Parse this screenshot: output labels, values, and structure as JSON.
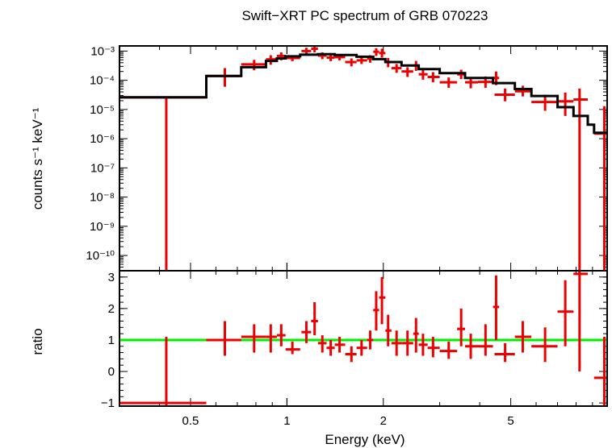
{
  "chart_data": {
    "type": "scatter",
    "title": "Swift−XRT PC spectrum of GRB 070223",
    "xlabel": "Energy (keV)",
    "x_scale": "log",
    "xlim": [
      0.3,
      10
    ],
    "x_ticks": [
      {
        "value": 0.5,
        "label": "0.5"
      },
      {
        "value": 1,
        "label": "1"
      },
      {
        "value": 2,
        "label": "2"
      },
      {
        "value": 5,
        "label": "5"
      }
    ],
    "panels": [
      {
        "name": "spectrum",
        "ylabel": "counts s⁻¹ keV⁻¹",
        "y_scale": "log",
        "ylim": [
          3e-11,
          0.0015
        ],
        "y_ticks": [
          {
            "value": 0.001,
            "label": "10⁻³"
          },
          {
            "value": 0.0001,
            "label": "10⁻⁴"
          },
          {
            "value": 1e-05,
            "label": "10⁻⁵"
          },
          {
            "value": 1e-06,
            "label": "10⁻⁶"
          },
          {
            "value": 1e-07,
            "label": "10⁻⁷"
          },
          {
            "value": 1e-08,
            "label": "10⁻⁸"
          },
          {
            "value": 1e-09,
            "label": "10⁻⁹"
          },
          {
            "value": 1e-10,
            "label": "10⁻¹⁰"
          }
        ],
        "data_color": "#ee0000",
        "model_color": "#000000",
        "points": [
          {
            "x": 0.42,
            "xlo": 0.3,
            "xhi": 0.56,
            "y": 2.6e-05,
            "ylo": 1e-11,
            "yhi": 2.6e-05
          },
          {
            "x": 0.64,
            "xlo": 0.56,
            "xhi": 0.72,
            "y": 0.00014,
            "ylo": 6e-05,
            "yhi": 0.00026
          },
          {
            "x": 0.79,
            "xlo": 0.72,
            "xhi": 0.86,
            "y": 0.00035,
            "ylo": 0.00022,
            "yhi": 0.0005
          },
          {
            "x": 0.89,
            "xlo": 0.86,
            "xhi": 0.93,
            "y": 0.00052,
            "ylo": 0.00034,
            "yhi": 0.00072
          },
          {
            "x": 0.96,
            "xlo": 0.93,
            "xhi": 0.99,
            "y": 0.00068,
            "ylo": 0.00048,
            "yhi": 0.0009
          },
          {
            "x": 1.04,
            "xlo": 0.99,
            "xhi": 1.1,
            "y": 0.00058,
            "ylo": 0.00045,
            "yhi": 0.00072
          },
          {
            "x": 1.15,
            "xlo": 1.11,
            "xhi": 1.19,
            "y": 0.001,
            "ylo": 0.00075,
            "yhi": 0.0013
          },
          {
            "x": 1.22,
            "xlo": 1.19,
            "xhi": 1.25,
            "y": 0.0012,
            "ylo": 0.0009,
            "yhi": 0.0015
          },
          {
            "x": 1.29,
            "xlo": 1.25,
            "xhi": 1.33,
            "y": 0.0007,
            "ylo": 0.00053,
            "yhi": 0.0009
          },
          {
            "x": 1.37,
            "xlo": 1.33,
            "xhi": 1.41,
            "y": 0.0006,
            "ylo": 0.00045,
            "yhi": 0.00078
          },
          {
            "x": 1.46,
            "xlo": 1.41,
            "xhi": 1.52,
            "y": 0.00062,
            "ylo": 0.00048,
            "yhi": 0.00078
          },
          {
            "x": 1.59,
            "xlo": 1.52,
            "xhi": 1.65,
            "y": 0.00042,
            "ylo": 0.0003,
            "yhi": 0.00056
          },
          {
            "x": 1.71,
            "xlo": 1.65,
            "xhi": 1.78,
            "y": 0.00048,
            "ylo": 0.00036,
            "yhi": 0.00062
          },
          {
            "x": 1.82,
            "xlo": 1.78,
            "xhi": 1.86,
            "y": 0.00055,
            "ylo": 0.0004,
            "yhi": 0.00072
          },
          {
            "x": 1.9,
            "xlo": 1.86,
            "xhi": 1.94,
            "y": 0.00095,
            "ylo": 0.00068,
            "yhi": 0.00125
          },
          {
            "x": 1.98,
            "xlo": 1.94,
            "xhi": 2.03,
            "y": 0.00085,
            "ylo": 0.0006,
            "yhi": 0.0012
          },
          {
            "x": 2.07,
            "xlo": 2.03,
            "xhi": 2.12,
            "y": 0.00042,
            "ylo": 0.00028,
            "yhi": 0.00058
          },
          {
            "x": 2.2,
            "xlo": 2.12,
            "xhi": 2.28,
            "y": 0.00026,
            "ylo": 0.00018,
            "yhi": 0.00036
          },
          {
            "x": 2.38,
            "xlo": 2.28,
            "xhi": 2.48,
            "y": 0.0002,
            "ylo": 0.00013,
            "yhi": 0.00028
          },
          {
            "x": 2.53,
            "xlo": 2.48,
            "xhi": 2.58,
            "y": 0.00032,
            "ylo": 0.00021,
            "yhi": 0.00046
          },
          {
            "x": 2.66,
            "xlo": 2.58,
            "xhi": 2.75,
            "y": 0.00016,
            "ylo": 0.000105,
            "yhi": 0.00023
          },
          {
            "x": 2.86,
            "xlo": 2.75,
            "xhi": 3.0,
            "y": 0.00013,
            "ylo": 8.5e-05,
            "yhi": 0.00019
          },
          {
            "x": 3.2,
            "xlo": 3.0,
            "xhi": 3.4,
            "y": 8.5e-05,
            "ylo": 5.5e-05,
            "yhi": 0.000125
          },
          {
            "x": 3.5,
            "xlo": 3.4,
            "xhi": 3.6,
            "y": 0.00016,
            "ylo": 0.00011,
            "yhi": 0.00023
          },
          {
            "x": 3.75,
            "xlo": 3.6,
            "xhi": 3.95,
            "y": 8.5e-05,
            "ylo": 5.3e-05,
            "yhi": 0.00013
          },
          {
            "x": 4.17,
            "xlo": 3.95,
            "xhi": 4.4,
            "y": 8.8e-05,
            "ylo": 5.5e-05,
            "yhi": 0.000135
          },
          {
            "x": 4.5,
            "xlo": 4.4,
            "xhi": 4.6,
            "y": 0.00012,
            "ylo": 6.8e-05,
            "yhi": 0.0002
          },
          {
            "x": 4.8,
            "xlo": 4.45,
            "xhi": 5.15,
            "y": 3.2e-05,
            "ylo": 1.9e-05,
            "yhi": 5.2e-05
          },
          {
            "x": 5.45,
            "xlo": 5.15,
            "xhi": 5.8,
            "y": 4.2e-05,
            "ylo": 2.8e-05,
            "yhi": 6.5e-05
          },
          {
            "x": 6.4,
            "xlo": 5.8,
            "xhi": 7.0,
            "y": 1.8e-05,
            "ylo": 9e-06,
            "yhi": 3.2e-05
          },
          {
            "x": 7.4,
            "xlo": 7.0,
            "xhi": 7.85,
            "y": 1.9e-05,
            "ylo": 6e-06,
            "yhi": 3.8e-05
          },
          {
            "x": 8.2,
            "xlo": 7.85,
            "xhi": 8.7,
            "y": 2.2e-05,
            "ylo": 1e-11,
            "yhi": 5.2e-05
          },
          {
            "x": 9.8,
            "xlo": 9.1,
            "xhi": 10.0,
            "y": 1.5e-06,
            "ylo": 1e-11,
            "yhi": 1.3e-05
          }
        ],
        "model_steps": [
          {
            "x0": 0.3,
            "x1": 0.56,
            "y": 2.6e-05
          },
          {
            "x0": 0.56,
            "x1": 0.72,
            "y": 0.00014
          },
          {
            "x0": 0.72,
            "x1": 0.86,
            "y": 0.00028
          },
          {
            "x0": 0.86,
            "x1": 0.93,
            "y": 0.00046
          },
          {
            "x0": 0.93,
            "x1": 0.99,
            "y": 0.00056
          },
          {
            "x0": 0.99,
            "x1": 1.1,
            "y": 0.00066
          },
          {
            "x0": 1.1,
            "x1": 1.25,
            "y": 0.00075
          },
          {
            "x0": 1.25,
            "x1": 1.41,
            "y": 0.00078
          },
          {
            "x0": 1.41,
            "x1": 1.65,
            "y": 0.00073
          },
          {
            "x0": 1.65,
            "x1": 1.86,
            "y": 0.00064
          },
          {
            "x0": 1.86,
            "x1": 2.03,
            "y": 0.00053
          },
          {
            "x0": 2.03,
            "x1": 2.28,
            "y": 0.00042
          },
          {
            "x0": 2.28,
            "x1": 2.58,
            "y": 0.00032
          },
          {
            "x0": 2.58,
            "x1": 3.0,
            "y": 0.00024
          },
          {
            "x0": 3.0,
            "x1": 3.6,
            "y": 0.000175
          },
          {
            "x0": 3.6,
            "x1": 4.4,
            "y": 0.00012
          },
          {
            "x0": 4.4,
            "x1": 5.15,
            "y": 8e-05
          },
          {
            "x0": 5.15,
            "x1": 5.8,
            "y": 5e-05
          },
          {
            "x0": 5.8,
            "x1": 7.0,
            "y": 2.9e-05
          },
          {
            "x0": 7.0,
            "x1": 7.85,
            "y": 1.2e-05
          },
          {
            "x0": 7.85,
            "x1": 8.7,
            "y": 6e-06
          },
          {
            "x0": 8.7,
            "x1": 9.1,
            "y": 3e-06
          },
          {
            "x0": 9.1,
            "x1": 10.0,
            "y": 1.6e-06
          }
        ]
      },
      {
        "name": "ratio",
        "ylabel": "ratio",
        "y_scale": "linear",
        "ylim": [
          -1.1,
          3.2
        ],
        "y_ticks": [
          {
            "value": -1,
            "label": "−1"
          },
          {
            "value": 0,
            "label": "0"
          },
          {
            "value": 1,
            "label": "1"
          },
          {
            "value": 2,
            "label": "2"
          },
          {
            "value": 3,
            "label": "3"
          }
        ],
        "reference_line": 1,
        "reference_color": "#00ee00",
        "data_color": "#ee0000",
        "points": [
          {
            "x": 0.42,
            "xlo": 0.3,
            "xhi": 0.56,
            "y": -1.0,
            "ylo": -1.1,
            "yhi": 1.1
          },
          {
            "x": 0.64,
            "xlo": 0.56,
            "xhi": 0.72,
            "y": 1.0,
            "ylo": 0.5,
            "yhi": 1.6
          },
          {
            "x": 0.79,
            "xlo": 0.72,
            "xhi": 0.86,
            "y": 1.1,
            "ylo": 0.6,
            "yhi": 1.5
          },
          {
            "x": 0.89,
            "xlo": 0.86,
            "xhi": 0.93,
            "y": 1.1,
            "ylo": 0.6,
            "yhi": 1.5
          },
          {
            "x": 0.96,
            "xlo": 0.93,
            "xhi": 0.99,
            "y": 1.15,
            "ylo": 0.8,
            "yhi": 1.5
          },
          {
            "x": 1.04,
            "xlo": 0.99,
            "xhi": 1.1,
            "y": 0.7,
            "ylo": 0.55,
            "yhi": 0.95
          },
          {
            "x": 1.15,
            "xlo": 1.11,
            "xhi": 1.19,
            "y": 1.25,
            "ylo": 0.9,
            "yhi": 1.6
          },
          {
            "x": 1.22,
            "xlo": 1.19,
            "xhi": 1.25,
            "y": 1.6,
            "ylo": 1.15,
            "yhi": 2.2
          },
          {
            "x": 1.29,
            "xlo": 1.25,
            "xhi": 1.33,
            "y": 0.9,
            "ylo": 0.6,
            "yhi": 1.15
          },
          {
            "x": 1.37,
            "xlo": 1.33,
            "xhi": 1.41,
            "y": 0.75,
            "ylo": 0.5,
            "yhi": 1.0
          },
          {
            "x": 1.46,
            "xlo": 1.41,
            "xhi": 1.52,
            "y": 0.85,
            "ylo": 0.6,
            "yhi": 1.1
          },
          {
            "x": 1.59,
            "xlo": 1.52,
            "xhi": 1.65,
            "y": 0.55,
            "ylo": 0.3,
            "yhi": 0.8
          },
          {
            "x": 1.71,
            "xlo": 1.65,
            "xhi": 1.78,
            "y": 0.75,
            "ylo": 0.5,
            "yhi": 1.0
          },
          {
            "x": 1.82,
            "xlo": 1.78,
            "xhi": 1.86,
            "y": 1.0,
            "ylo": 0.7,
            "yhi": 1.3
          },
          {
            "x": 1.9,
            "xlo": 1.86,
            "xhi": 1.94,
            "y": 1.95,
            "ylo": 1.3,
            "yhi": 2.55
          },
          {
            "x": 1.98,
            "xlo": 1.94,
            "xhi": 2.03,
            "y": 2.35,
            "ylo": 1.5,
            "yhi": 3.0
          },
          {
            "x": 2.07,
            "xlo": 2.03,
            "xhi": 2.12,
            "y": 1.3,
            "ylo": 0.8,
            "yhi": 1.8
          },
          {
            "x": 2.2,
            "xlo": 2.12,
            "xhi": 2.28,
            "y": 0.9,
            "ylo": 0.5,
            "yhi": 1.3
          },
          {
            "x": 2.38,
            "xlo": 2.28,
            "xhi": 2.48,
            "y": 0.9,
            "ylo": 0.5,
            "yhi": 1.3
          },
          {
            "x": 2.53,
            "xlo": 2.48,
            "xhi": 2.58,
            "y": 1.2,
            "ylo": 0.6,
            "yhi": 1.7
          },
          {
            "x": 2.66,
            "xlo": 2.58,
            "xhi": 2.75,
            "y": 0.85,
            "ylo": 0.5,
            "yhi": 1.2
          },
          {
            "x": 2.86,
            "xlo": 2.75,
            "xhi": 3.0,
            "y": 0.75,
            "ylo": 0.45,
            "yhi": 1.1
          },
          {
            "x": 3.2,
            "xlo": 3.0,
            "xhi": 3.4,
            "y": 0.65,
            "ylo": 0.4,
            "yhi": 0.95
          },
          {
            "x": 3.5,
            "xlo": 3.4,
            "xhi": 3.6,
            "y": 1.35,
            "ylo": 0.8,
            "yhi": 2.0
          },
          {
            "x": 3.75,
            "xlo": 3.6,
            "xhi": 3.95,
            "y": 0.8,
            "ylo": 0.4,
            "yhi": 1.2
          },
          {
            "x": 4.17,
            "xlo": 3.95,
            "xhi": 4.4,
            "y": 0.8,
            "ylo": 0.5,
            "yhi": 1.5
          },
          {
            "x": 4.5,
            "xlo": 4.4,
            "xhi": 4.6,
            "y": 2.05,
            "ylo": 1.0,
            "yhi": 3.05
          },
          {
            "x": 4.8,
            "xlo": 4.45,
            "xhi": 5.15,
            "y": 0.55,
            "ylo": 0.3,
            "yhi": 0.9
          },
          {
            "x": 5.45,
            "xlo": 5.15,
            "xhi": 5.8,
            "y": 1.1,
            "ylo": 0.6,
            "yhi": 1.6
          },
          {
            "x": 6.4,
            "xlo": 5.8,
            "xhi": 7.0,
            "y": 0.8,
            "ylo": 0.3,
            "yhi": 1.4
          },
          {
            "x": 7.4,
            "xlo": 7.0,
            "xhi": 7.85,
            "y": 1.9,
            "ylo": 0.8,
            "yhi": 2.9
          },
          {
            "x": 8.2,
            "xlo": 7.85,
            "xhi": 8.7,
            "y": 3.1,
            "ylo": 0.0,
            "yhi": 3.2
          },
          {
            "x": 9.8,
            "xlo": 9.1,
            "xhi": 10.0,
            "y": -0.2,
            "ylo": -1.1,
            "yhi": 1.1
          }
        ]
      }
    ]
  }
}
